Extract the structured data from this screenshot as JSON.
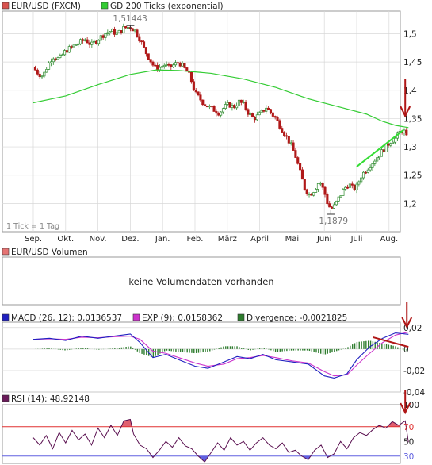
{
  "colors": {
    "background": "#ffffff",
    "grid": "#d8d8d8",
    "frame": "#9a9a9a",
    "candle_up": "#2e8b2e",
    "candle_down": "#b01818",
    "ma": "#33cc33",
    "annotation_arrow": "#b01818",
    "trend_up": "#33dd33",
    "trend_down": "#b01818",
    "macd": "#2020c0",
    "exp": "#cc33cc",
    "divergence": "#2e7d2e",
    "rsi": "#5a1050",
    "rsi_over": "#e06070",
    "rsi_under": "#6060e0",
    "rsi_70": "#e03030",
    "rsi_30": "#6060e0"
  },
  "price_panel": {
    "legend": [
      {
        "label": "EUR/USD (FXCM)",
        "color": "#d9534f"
      },
      {
        "label": "GD 200 Ticks (exponential)",
        "color": "#33cc33"
      }
    ],
    "note": "1 Tick = 1 Tag",
    "y_ticks": [
      "1,5",
      "1,45",
      "1,4",
      "1,35",
      "1,3",
      "1,25",
      "1,2"
    ],
    "months": [
      "Sep.",
      "Okt.",
      "Nov.",
      "Dez.",
      "Jan.",
      "Feb.",
      "März",
      "April",
      "Mai",
      "Juni",
      "Juli",
      "Aug."
    ],
    "high_label": "1,51443",
    "low_label": "1,1879"
  },
  "volume_panel": {
    "legend": "EUR/USD Volumen",
    "message": "keine Volumendaten vorhanden"
  },
  "macd_panel": {
    "legend": [
      {
        "label": "MACD (26, 12): 0,0136537",
        "color": "#2020c0"
      },
      {
        "label": "EXP (9): 0,0158362",
        "color": "#cc33cc"
      },
      {
        "label": "Divergence: -0,0021825",
        "color": "#2e7d2e"
      }
    ],
    "y_ticks": [
      "0,02",
      "0",
      "-0,02",
      "-0,04"
    ]
  },
  "rsi_panel": {
    "legend": {
      "label": "RSI (14): 48,92148",
      "color": "#6a1b5a"
    },
    "y_ticks": [
      "100",
      "70",
      "50",
      "30"
    ]
  },
  "chart_data": [
    {
      "type": "candlestick",
      "title": "EUR/USD (FXCM)",
      "x_categories": [
        "Sep.",
        "Okt.",
        "Nov.",
        "Dez.",
        "Jan.",
        "Feb.",
        "März",
        "April",
        "Mai",
        "Juni",
        "Juli",
        "Aug."
      ],
      "ylim": [
        1.15,
        1.54
      ],
      "grid": true,
      "annotations": [
        {
          "text": "1,51443",
          "value": 1.51443,
          "month": "Dez."
        },
        {
          "text": "1,1879",
          "value": 1.1879,
          "month": "Juni"
        }
      ],
      "price_path": [
        [
          0.0,
          1.44
        ],
        [
          0.15,
          1.43
        ],
        [
          0.3,
          1.425
        ],
        [
          0.45,
          1.445
        ],
        [
          0.6,
          1.46
        ],
        [
          0.8,
          1.455
        ],
        [
          1.0,
          1.47
        ],
        [
          1.15,
          1.475
        ],
        [
          1.3,
          1.48
        ],
        [
          1.45,
          1.485
        ],
        [
          1.6,
          1.49
        ],
        [
          1.8,
          1.48
        ],
        [
          2.0,
          1.49
        ],
        [
          2.2,
          1.5
        ],
        [
          2.4,
          1.505
        ],
        [
          2.6,
          1.5
        ],
        [
          2.8,
          1.51
        ],
        [
          3.0,
          1.512
        ],
        [
          3.15,
          1.505
        ],
        [
          3.3,
          1.49
        ],
        [
          3.45,
          1.47
        ],
        [
          3.6,
          1.455
        ],
        [
          3.75,
          1.44
        ],
        [
          3.9,
          1.44
        ],
        [
          4.05,
          1.445
        ],
        [
          4.2,
          1.44
        ],
        [
          4.35,
          1.445
        ],
        [
          4.5,
          1.45
        ],
        [
          4.65,
          1.44
        ],
        [
          4.8,
          1.43
        ],
        [
          4.9,
          1.415
        ],
        [
          5.0,
          1.395
        ],
        [
          5.15,
          1.385
        ],
        [
          5.3,
          1.375
        ],
        [
          5.45,
          1.37
        ],
        [
          5.6,
          1.365
        ],
        [
          5.75,
          1.36
        ],
        [
          5.9,
          1.37
        ],
        [
          6.05,
          1.375
        ],
        [
          6.2,
          1.37
        ],
        [
          6.35,
          1.38
        ],
        [
          6.5,
          1.375
        ],
        [
          6.65,
          1.36
        ],
        [
          6.8,
          1.35
        ],
        [
          6.95,
          1.355
        ],
        [
          7.05,
          1.36
        ],
        [
          7.2,
          1.37
        ],
        [
          7.35,
          1.36
        ],
        [
          7.5,
          1.35
        ],
        [
          7.65,
          1.335
        ],
        [
          7.8,
          1.32
        ],
        [
          7.95,
          1.305
        ],
        [
          8.1,
          1.285
        ],
        [
          8.25,
          1.255
        ],
        [
          8.4,
          1.225
        ],
        [
          8.55,
          1.215
        ],
        [
          8.7,
          1.225
        ],
        [
          8.85,
          1.24
        ],
        [
          9.0,
          1.22
        ],
        [
          9.1,
          1.2
        ],
        [
          9.2,
          1.19
        ],
        [
          9.3,
          1.195
        ],
        [
          9.45,
          1.21
        ],
        [
          9.6,
          1.225
        ],
        [
          9.75,
          1.235
        ],
        [
          9.9,
          1.225
        ],
        [
          10.0,
          1.23
        ],
        [
          10.15,
          1.25
        ],
        [
          10.3,
          1.26
        ],
        [
          10.45,
          1.27
        ],
        [
          10.6,
          1.28
        ],
        [
          10.75,
          1.29
        ],
        [
          10.9,
          1.3
        ],
        [
          11.05,
          1.31
        ],
        [
          11.2,
          1.315
        ],
        [
          11.3,
          1.325
        ],
        [
          11.45,
          1.33
        ],
        [
          11.55,
          1.315
        ],
        [
          11.6,
          1.29
        ]
      ],
      "series": [
        {
          "name": "GD 200 Ticks (exponential)",
          "type": "line",
          "points": [
            [
              0.0,
              1.378
            ],
            [
              1.0,
              1.39
            ],
            [
              2.0,
              1.41
            ],
            [
              3.0,
              1.428
            ],
            [
              3.8,
              1.436
            ],
            [
              4.5,
              1.435
            ],
            [
              5.5,
              1.43
            ],
            [
              6.5,
              1.42
            ],
            [
              7.5,
              1.405
            ],
            [
              8.5,
              1.385
            ],
            [
              9.5,
              1.37
            ],
            [
              10.3,
              1.358
            ],
            [
              10.8,
              1.345
            ],
            [
              11.2,
              1.338
            ],
            [
              11.6,
              1.334
            ]
          ]
        }
      ]
    },
    {
      "type": "line",
      "title": "MACD (26, 12)",
      "ylim": [
        -0.04,
        0.025
      ],
      "series": [
        {
          "name": "MACD (26, 12)",
          "points": [
            [
              0.0,
              0.009
            ],
            [
              0.5,
              0.01
            ],
            [
              1.0,
              0.008
            ],
            [
              1.5,
              0.012
            ],
            [
              2.0,
              0.01
            ],
            [
              2.5,
              0.012
            ],
            [
              3.0,
              0.014
            ],
            [
              3.3,
              0.006
            ],
            [
              3.7,
              -0.008
            ],
            [
              4.1,
              -0.005
            ],
            [
              4.5,
              -0.01
            ],
            [
              5.0,
              -0.016
            ],
            [
              5.4,
              -0.018
            ],
            [
              5.9,
              -0.012
            ],
            [
              6.3,
              -0.007
            ],
            [
              6.7,
              -0.009
            ],
            [
              7.1,
              -0.005
            ],
            [
              7.5,
              -0.01
            ],
            [
              8.0,
              -0.012
            ],
            [
              8.5,
              -0.014
            ],
            [
              9.0,
              -0.025
            ],
            [
              9.3,
              -0.027
            ],
            [
              9.7,
              -0.023
            ],
            [
              10.0,
              -0.01
            ],
            [
              10.4,
              0.002
            ],
            [
              10.8,
              0.01
            ],
            [
              11.2,
              0.015
            ],
            [
              11.6,
              0.0137
            ]
          ]
        },
        {
          "name": "EXP (9)",
          "points": [
            [
              0.0,
              0.009
            ],
            [
              0.5,
              0.0095
            ],
            [
              1.0,
              0.009
            ],
            [
              1.5,
              0.011
            ],
            [
              2.0,
              0.0105
            ],
            [
              2.5,
              0.0115
            ],
            [
              3.0,
              0.012
            ],
            [
              3.3,
              0.009
            ],
            [
              3.7,
              -0.002
            ],
            [
              4.1,
              -0.004
            ],
            [
              4.5,
              -0.008
            ],
            [
              5.0,
              -0.013
            ],
            [
              5.4,
              -0.016
            ],
            [
              5.9,
              -0.014
            ],
            [
              6.3,
              -0.009
            ],
            [
              6.7,
              -0.008
            ],
            [
              7.1,
              -0.006
            ],
            [
              7.5,
              -0.008
            ],
            [
              8.0,
              -0.011
            ],
            [
              8.5,
              -0.013
            ],
            [
              9.0,
              -0.021
            ],
            [
              9.3,
              -0.025
            ],
            [
              9.7,
              -0.024
            ],
            [
              10.0,
              -0.015
            ],
            [
              10.4,
              -0.004
            ],
            [
              10.8,
              0.006
            ],
            [
              11.2,
              0.013
            ],
            [
              11.6,
              0.0158
            ]
          ]
        }
      ]
    },
    {
      "type": "line",
      "title": "RSI (14)",
      "ylim": [
        20,
        100
      ],
      "reference_lines": [
        70,
        30
      ],
      "series": [
        {
          "name": "RSI (14)",
          "points": [
            [
              0.0,
              55
            ],
            [
              0.2,
              45
            ],
            [
              0.4,
              58
            ],
            [
              0.6,
              40
            ],
            [
              0.8,
              62
            ],
            [
              1.0,
              48
            ],
            [
              1.2,
              65
            ],
            [
              1.4,
              52
            ],
            [
              1.6,
              60
            ],
            [
              1.8,
              45
            ],
            [
              2.0,
              68
            ],
            [
              2.2,
              55
            ],
            [
              2.4,
              72
            ],
            [
              2.6,
              58
            ],
            [
              2.8,
              78
            ],
            [
              3.0,
              80
            ],
            [
              3.1,
              60
            ],
            [
              3.3,
              45
            ],
            [
              3.5,
              40
            ],
            [
              3.7,
              28
            ],
            [
              3.9,
              38
            ],
            [
              4.1,
              50
            ],
            [
              4.3,
              42
            ],
            [
              4.5,
              55
            ],
            [
              4.7,
              44
            ],
            [
              4.9,
              40
            ],
            [
              5.1,
              30
            ],
            [
              5.3,
              22
            ],
            [
              5.5,
              35
            ],
            [
              5.7,
              48
            ],
            [
              5.9,
              38
            ],
            [
              6.1,
              55
            ],
            [
              6.3,
              45
            ],
            [
              6.5,
              50
            ],
            [
              6.7,
              38
            ],
            [
              6.9,
              48
            ],
            [
              7.1,
              55
            ],
            [
              7.3,
              45
            ],
            [
              7.5,
              40
            ],
            [
              7.7,
              48
            ],
            [
              7.9,
              35
            ],
            [
              8.1,
              38
            ],
            [
              8.3,
              30
            ],
            [
              8.5,
              25
            ],
            [
              8.7,
              38
            ],
            [
              8.9,
              45
            ],
            [
              9.1,
              28
            ],
            [
              9.3,
              33
            ],
            [
              9.5,
              50
            ],
            [
              9.7,
              40
            ],
            [
              9.9,
              55
            ],
            [
              10.1,
              62
            ],
            [
              10.3,
              58
            ],
            [
              10.5,
              66
            ],
            [
              10.7,
              72
            ],
            [
              10.9,
              68
            ],
            [
              11.1,
              77
            ],
            [
              11.3,
              72
            ],
            [
              11.5,
              78
            ],
            [
              11.6,
              48.9
            ]
          ]
        }
      ]
    }
  ]
}
